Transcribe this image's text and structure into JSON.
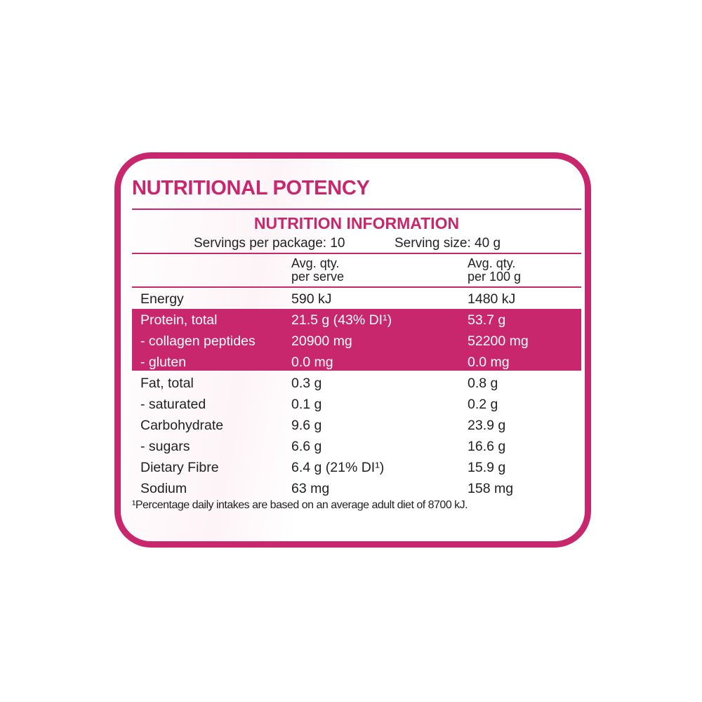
{
  "title": "NUTRITIONAL POTENCY",
  "panel_title": "NUTRITION INFORMATION",
  "servings_per_package": "Servings per package: 10",
  "serving_size": "Serving size: 40 g",
  "columns": [
    "Avg. qty.\nper serve",
    "Avg. qty.\nper 100 g"
  ],
  "col1": {
    "a": "Avg. qty.",
    "b": "per serve"
  },
  "col2": {
    "a": "Avg. qty.",
    "b": "per 100 g"
  },
  "rows": [
    {
      "name": "Energy",
      "serve": "590 kJ",
      "per100": "1480 kJ",
      "highlight": false
    },
    {
      "name": "Protein, total",
      "serve": "21.5 g (43% DI¹)",
      "per100": "53.7 g",
      "highlight": true
    },
    {
      "name": "- collagen peptides",
      "serve": "20900 mg",
      "per100": "52200 mg",
      "highlight": true
    },
    {
      "name": "- gluten",
      "serve": "0.0 mg",
      "per100": "0.0 mg",
      "highlight": true
    },
    {
      "name": "Fat, total",
      "serve": "0.3 g",
      "per100": "0.8 g",
      "highlight": false
    },
    {
      "name": "- saturated",
      "serve": "0.1 g",
      "per100": "0.2 g",
      "highlight": false
    },
    {
      "name": "Carbohydrate",
      "serve": "9.6 g",
      "per100": "23.9 g",
      "highlight": false
    },
    {
      "name": "- sugars",
      "serve": "6.6 g",
      "per100": "16.6 g",
      "highlight": false
    },
    {
      "name": "Dietary Fibre",
      "serve": "6.4 g (21% DI¹)",
      "per100": "15.9 g",
      "highlight": false
    },
    {
      "name": "Sodium",
      "serve": "63 mg",
      "per100": "158 mg",
      "highlight": false
    }
  ],
  "footnote": "¹Percentage daily intakes are based on an average adult diet of 8700 kJ.",
  "colors": {
    "accent": "#c8276e"
  }
}
